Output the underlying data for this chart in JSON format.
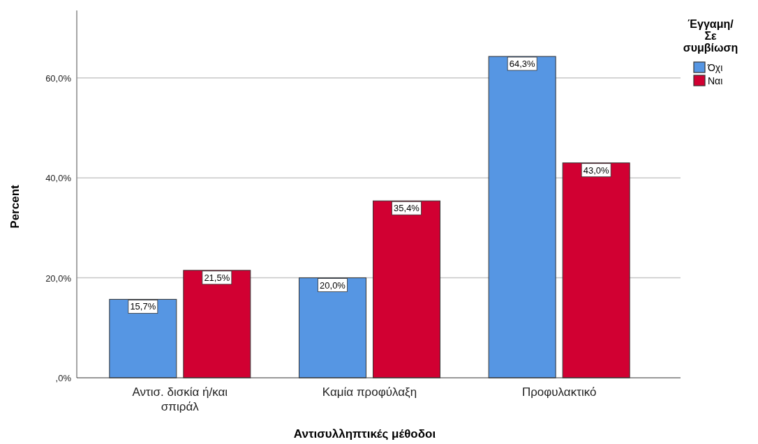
{
  "chart_data": {
    "type": "bar",
    "xlabel": "Αντισυλληπτικές μέθοδοι",
    "ylabel": "Percent",
    "legend_title": "Έγγαμη/ Σε συμβίωση",
    "categories": [
      "Αντισ. δισκία  ή/και σπιράλ",
      "Καμία προφύλαξη",
      "Προφυλακτικό"
    ],
    "series": [
      {
        "name": "Όχι",
        "color": "#5696e3",
        "values": [
          15.7,
          20.0,
          64.3
        ],
        "value_labels": [
          "15,7%",
          "20,0%",
          "64,3%"
        ]
      },
      {
        "name": "Ναι",
        "color": "#d10032",
        "values": [
          21.5,
          35.4,
          43.0
        ],
        "value_labels": [
          "21,5%",
          "35,4%",
          "43,0%"
        ]
      }
    ],
    "ylim": [
      0,
      73.5
    ],
    "yticks": [
      {
        "value": 0,
        "label": ",0%"
      },
      {
        "value": 20,
        "label": "20,0%"
      },
      {
        "value": 40,
        "label": "40,0%"
      },
      {
        "value": 60,
        "label": "60,0%"
      }
    ],
    "grid": "y",
    "legend": "top right"
  }
}
